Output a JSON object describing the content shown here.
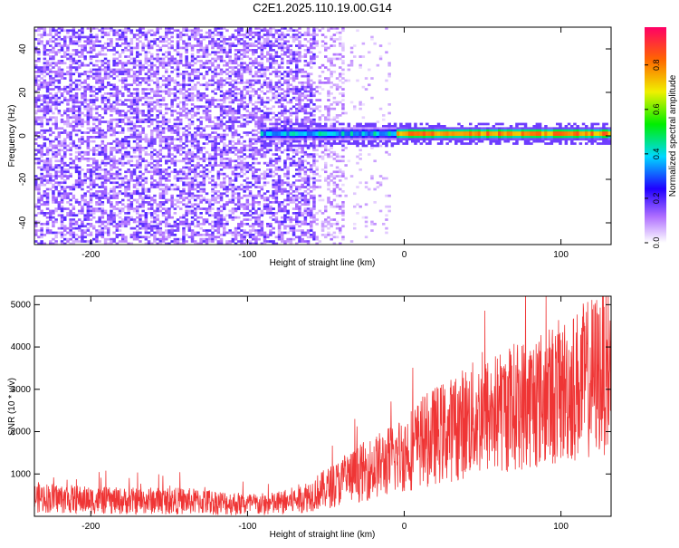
{
  "title": "C2E1.2025.110.19.00.G14",
  "chart_data": [
    {
      "type": "heatmap",
      "xlabel": "Height of straight line (km)",
      "ylabel": "Frequency (Hz)",
      "xlim": [
        -236,
        132
      ],
      "ylim": [
        -50,
        50
      ],
      "xticks": [
        -200,
        -100,
        0,
        100
      ],
      "xtick_labels": [
        "-200",
        "-100",
        "0",
        "100"
      ],
      "yticks": [
        40,
        20,
        0,
        -20,
        -40
      ],
      "ytick_labels": [
        "40",
        "20",
        "0",
        "-20",
        "-40"
      ],
      "colorbar": {
        "label": "Normalized spectral amplitude",
        "range": [
          0,
          0.97
        ],
        "ticks": [
          0.0,
          0.2,
          0.4,
          0.6,
          0.8
        ],
        "tick_labels": [
          "0.0",
          "0.2",
          "0.4",
          "0.6",
          "0.8"
        ]
      },
      "regions": [
        {
          "x_range": [
            -236,
            -55
          ],
          "freq_range": [
            -50,
            50
          ],
          "amplitude": "0.05-0.2 (diffuse noise)"
        },
        {
          "x_range": [
            -90,
            -5
          ],
          "freq_center": 1,
          "amplitude": "0.2-0.5"
        },
        {
          "x_range": [
            -5,
            132
          ],
          "freq_center": 1,
          "amplitude": "0.7-0.95"
        }
      ]
    },
    {
      "type": "line",
      "xlabel": "Height of straight line (km)",
      "ylabel": "SNR (10 * v/v)",
      "xlim": [
        -236,
        132
      ],
      "ylim": [
        0,
        5200
      ],
      "xticks": [
        -200,
        -100,
        0,
        100
      ],
      "xtick_labels": [
        "-200",
        "-100",
        "0",
        "100"
      ],
      "yticks": [
        1000,
        2000,
        3000,
        4000,
        5000
      ],
      "ytick_labels": [
        "1000",
        "2000",
        "3000",
        "4000",
        "5000"
      ],
      "color": "#ef3535",
      "series": [
        {
          "x": [
            -236,
            -220,
            -200,
            -180,
            -160,
            -140,
            -120,
            -100,
            -90,
            -80,
            -70,
            -60,
            -50,
            -40,
            -30,
            -20,
            -10,
            0,
            10,
            20,
            30,
            40,
            50,
            60,
            70,
            80,
            90,
            100,
            110,
            120,
            132
          ],
          "y": [
            450,
            420,
            380,
            360,
            370,
            360,
            330,
            280,
            280,
            300,
            380,
            500,
            650,
            820,
            1000,
            1150,
            1300,
            1500,
            1720,
            1920,
            2050,
            2250,
            2350,
            2450,
            2600,
            2700,
            2800,
            2950,
            3100,
            3300,
            3550
          ]
        }
      ]
    }
  ]
}
